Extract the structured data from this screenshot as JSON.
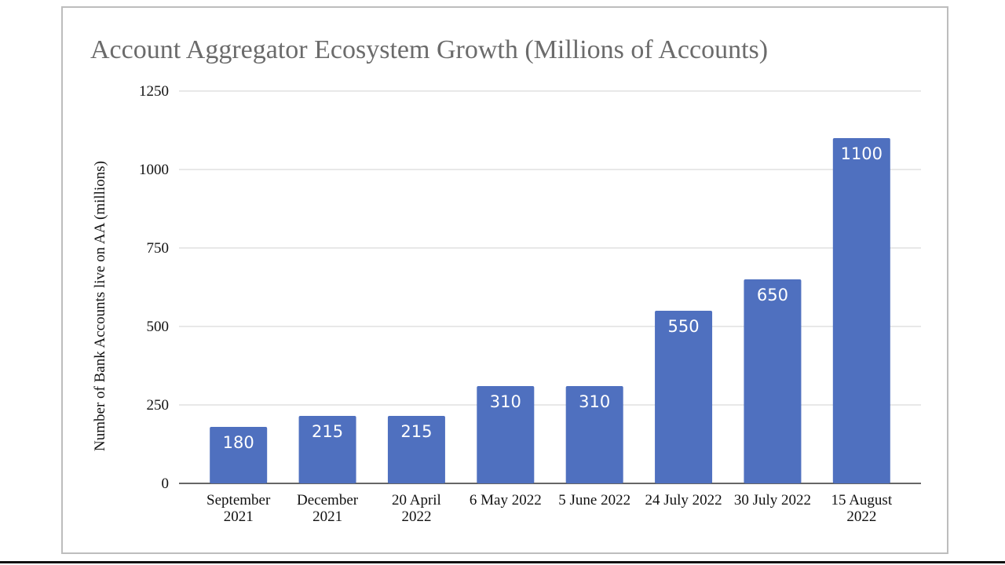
{
  "chart_data": {
    "type": "bar",
    "title": "Account Aggregator Ecosystem Growth (Millions of Accounts)",
    "y_label": "Number of Bank Accounts live on AA (millions)",
    "categories": [
      "September 2021",
      "December 2021",
      "20 April 2022",
      "6 May 2022",
      "5 June 2022",
      "24 July 2022",
      "30 July 2022",
      "15 August 2022"
    ],
    "values": [
      180,
      215,
      215,
      310,
      310,
      550,
      650,
      1100
    ],
    "color": "#4f70bf",
    "ylim": [
      0,
      1250
    ],
    "yticks": [
      0,
      250,
      500,
      750,
      1000,
      1250
    ],
    "grid": true
  }
}
